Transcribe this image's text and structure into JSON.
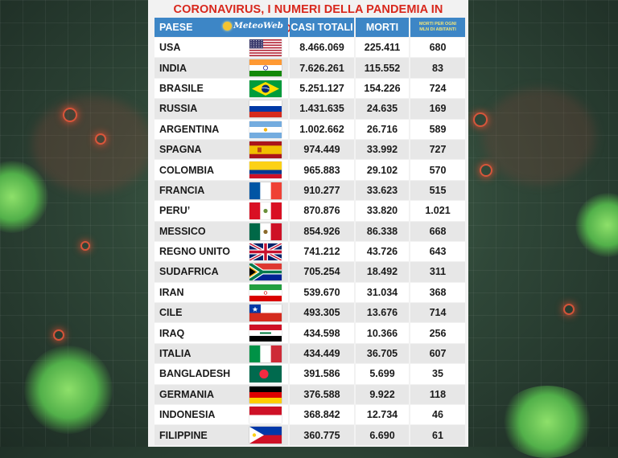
{
  "title": "CORONAVIRUS, I NUMERI DELLA PANDEMIA IN DIRETTA",
  "logo_text": "MeteoWeb",
  "headers": {
    "country": "PAESE",
    "cases": "CASI TOTALI",
    "deaths": "MORTI",
    "per_million_line1": "MORTI PER OGNI",
    "per_million_line2": "MLN DI ABITANTI"
  },
  "rows": [
    {
      "country": "USA",
      "cases": "8.466.069",
      "deaths": "225.411",
      "per_million": "680",
      "flag": "usa-flag"
    },
    {
      "country": "INDIA",
      "cases": "7.626.261",
      "deaths": "115.552",
      "per_million": "83",
      "flag": "india-flag"
    },
    {
      "country": "BRASILE",
      "cases": "5.251.127",
      "deaths": "154.226",
      "per_million": "724",
      "flag": "brazil-flag"
    },
    {
      "country": "RUSSIA",
      "cases": "1.431.635",
      "deaths": "24.635",
      "per_million": "169",
      "flag": "russia-flag"
    },
    {
      "country": "ARGENTINA",
      "cases": "1.002.662",
      "deaths": "26.716",
      "per_million": "589",
      "flag": "argentina-flag"
    },
    {
      "country": "SPAGNA",
      "cases": "974.449",
      "deaths": "33.992",
      "per_million": "727",
      "flag": "spain-flag"
    },
    {
      "country": "COLOMBIA",
      "cases": "965.883",
      "deaths": "29.102",
      "per_million": "570",
      "flag": "colombia-flag"
    },
    {
      "country": "FRANCIA",
      "cases": "910.277",
      "deaths": "33.623",
      "per_million": "515",
      "flag": "france-flag"
    },
    {
      "country": "PERU’",
      "cases": "870.876",
      "deaths": "33.820",
      "per_million": "1.021",
      "flag": "peru-flag"
    },
    {
      "country": "MESSICO",
      "cases": "854.926",
      "deaths": "86.338",
      "per_million": "668",
      "flag": "mexico-flag"
    },
    {
      "country": "REGNO UNITO",
      "cases": "741.212",
      "deaths": "43.726",
      "per_million": "643",
      "flag": "uk-flag"
    },
    {
      "country": "SUDAFRICA",
      "cases": "705.254",
      "deaths": "18.492",
      "per_million": "311",
      "flag": "south-africa-flag"
    },
    {
      "country": "IRAN",
      "cases": "539.670",
      "deaths": "31.034",
      "per_million": "368",
      "flag": "iran-flag"
    },
    {
      "country": "CILE",
      "cases": "493.305",
      "deaths": "13.676",
      "per_million": "714",
      "flag": "chile-flag"
    },
    {
      "country": "IRAQ",
      "cases": "434.598",
      "deaths": "10.366",
      "per_million": "256",
      "flag": "iraq-flag"
    },
    {
      "country": "ITALIA",
      "cases": "434.449",
      "deaths": "36.705",
      "per_million": "607",
      "flag": "italy-flag"
    },
    {
      "country": "BANGLADESH",
      "cases": "391.586",
      "deaths": "5.699",
      "per_million": "35",
      "flag": "bangladesh-flag"
    },
    {
      "country": "GERMANIA",
      "cases": "376.588",
      "deaths": "9.922",
      "per_million": "118",
      "flag": "germany-flag"
    },
    {
      "country": "INDONESIA",
      "cases": "368.842",
      "deaths": "12.734",
      "per_million": "46",
      "flag": "indonesia-flag"
    },
    {
      "country": "FILIPPINE",
      "cases": "360.775",
      "deaths": "6.690",
      "per_million": "61",
      "flag": "philippines-flag"
    }
  ],
  "colors": {
    "title_red": "#d8271c",
    "header_blue": "#3d86c6",
    "header_small_text": "#f0e57a"
  }
}
